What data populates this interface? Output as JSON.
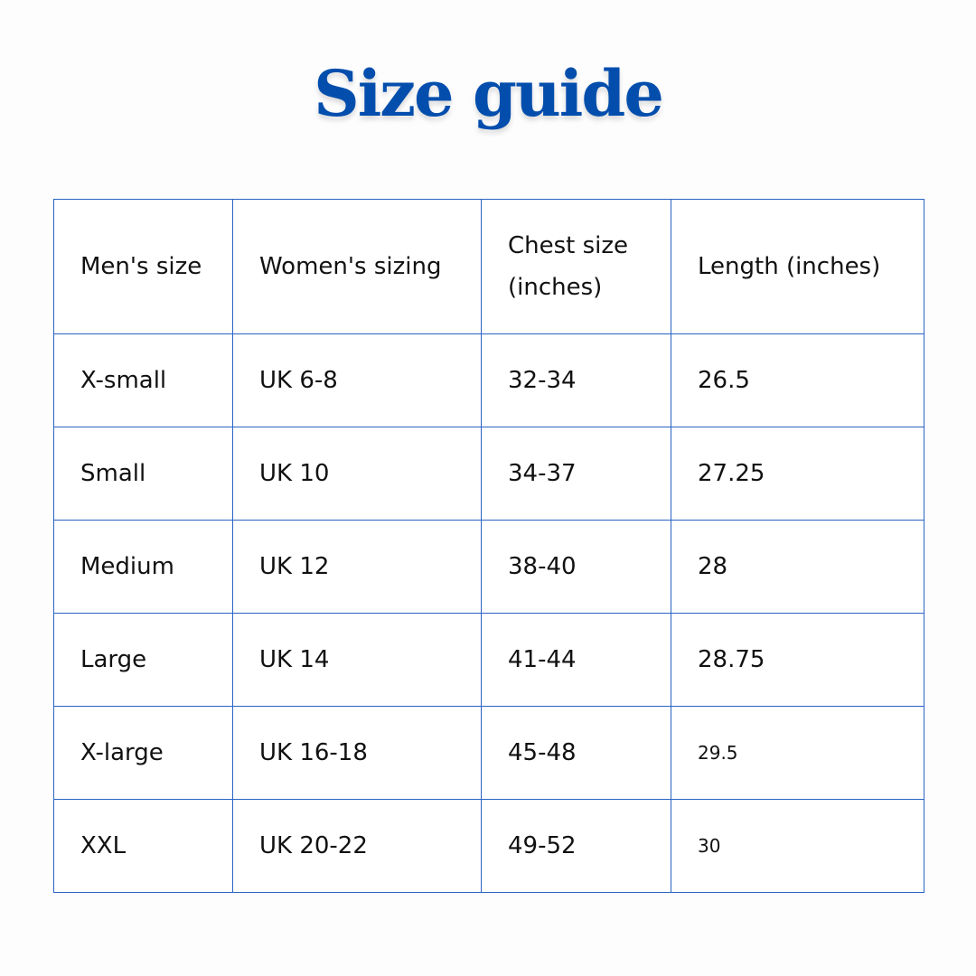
{
  "title": "Size guide",
  "colors": {
    "title": "#034ead",
    "border": "#2a63c4"
  },
  "table": {
    "headers": [
      "Men's size",
      "Women's sizing",
      "Chest size (inches)",
      "Length (inches)"
    ],
    "rows": [
      [
        "X-small",
        "UK 6-8",
        "32-34",
        "26.5"
      ],
      [
        "Small",
        "UK 10",
        "34-37",
        "27.25"
      ],
      [
        "Medium",
        "UK 12",
        "38-40",
        "28"
      ],
      [
        "Large",
        "UK 14",
        "41-44",
        "28.75"
      ],
      [
        "X-large",
        "UK 16-18",
        "45-48",
        "29.5"
      ],
      [
        "XXL",
        "UK 20-22",
        "49-52",
        "30"
      ]
    ]
  }
}
